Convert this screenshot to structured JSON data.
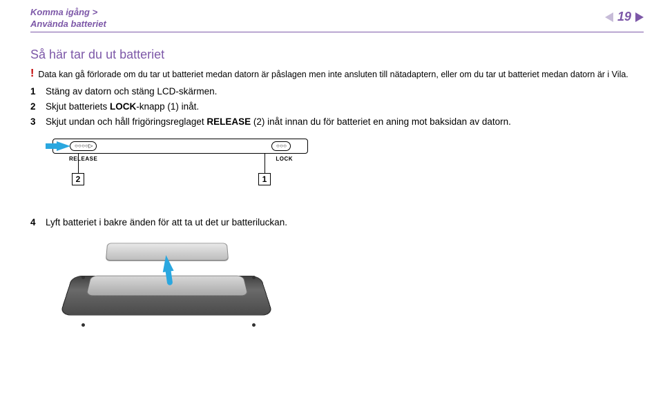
{
  "breadcrumb": {
    "line1": "Komma igång >",
    "line2": "Använda batteriet"
  },
  "page": {
    "number": "19"
  },
  "section": {
    "title": "Så här tar du ut batteriet"
  },
  "warning": {
    "text": "Data kan gå förlorade om du tar ut batteriet medan datorn är påslagen men inte ansluten till nätadaptern, eller om du tar ut batteriet medan datorn är i Vila."
  },
  "steps": {
    "s1": {
      "num": "1",
      "text": "Stäng av datorn och stäng LCD-skärmen."
    },
    "s2": {
      "num": "2",
      "pre": "Skjut batteriets ",
      "bold": "LOCK",
      "post": "-knapp (1) inåt."
    },
    "s3": {
      "num": "3",
      "pre": "Skjut undan och håll frigöringsreglaget ",
      "bold": "RELEASE",
      "post": " (2) inåt innan du för batteriet en aning mot baksidan av datorn."
    },
    "s4": {
      "num": "4",
      "text": "Lyft batteriet i bakre änden för att ta ut det ur batteriluckan."
    }
  },
  "fig1": {
    "release_label": "RELEASE",
    "lock_label": "LOCK",
    "box1": "1",
    "box2": "2",
    "arrow_color": "#2aa7df"
  },
  "colors": {
    "purple": "#7d58a8",
    "red": "#c00000",
    "blue": "#2aa7df"
  }
}
